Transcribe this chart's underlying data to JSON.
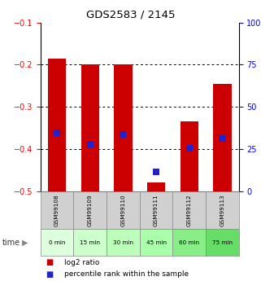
{
  "title": "GDS2583 / 2145",
  "samples": [
    "GSM99108",
    "GSM99109",
    "GSM99110",
    "GSM99111",
    "GSM99112",
    "GSM99113"
  ],
  "time_labels": [
    "0 min",
    "15 min",
    "30 min",
    "45 min",
    "60 min",
    "75 min"
  ],
  "log2_ratio_bottom": [
    -0.5,
    -0.5,
    -0.5,
    -0.5,
    -0.5,
    -0.5
  ],
  "log2_ratio_top": [
    -0.185,
    -0.2,
    -0.2,
    -0.48,
    -0.335,
    -0.245
  ],
  "pct_left_vals": [
    -0.362,
    -0.388,
    -0.365,
    -0.455,
    -0.398,
    -0.375
  ],
  "ylim_left": [
    -0.5,
    -0.1
  ],
  "ylim_right": [
    0,
    100
  ],
  "yticks_left": [
    -0.5,
    -0.4,
    -0.3,
    -0.2,
    -0.1
  ],
  "yticks_right": [
    0,
    25,
    50,
    75,
    100
  ],
  "bar_color": "#cc0000",
  "dot_color": "#2222cc",
  "bg_color_gray": "#d0d0d0",
  "time_colors": [
    "#ddffdd",
    "#ccffcc",
    "#bbffbb",
    "#aaffaa",
    "#88ee88",
    "#66dd66"
  ],
  "bar_width": 0.55,
  "dot_size": 30
}
